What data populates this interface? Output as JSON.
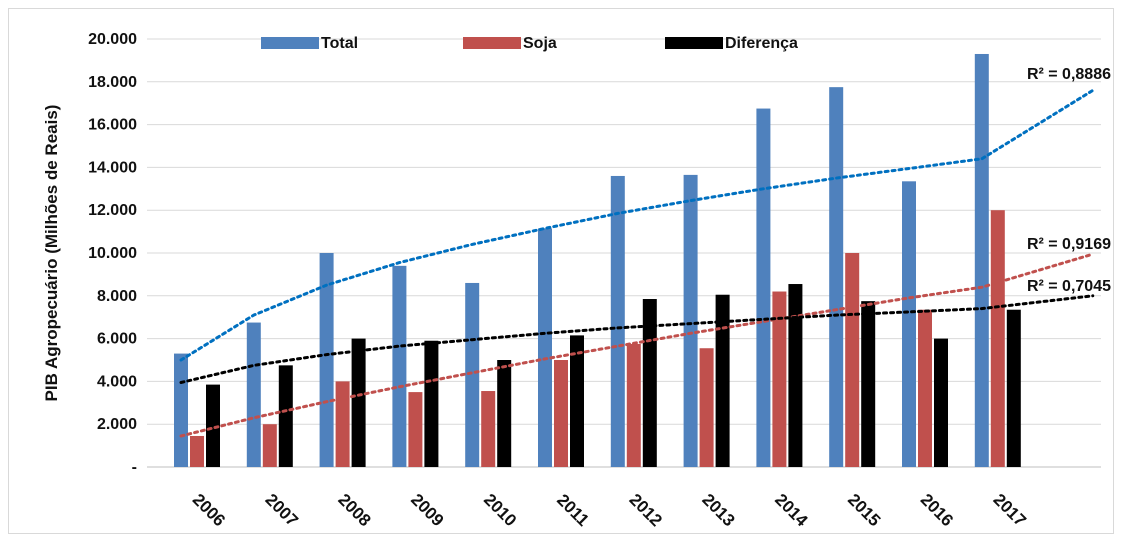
{
  "chart_data": {
    "type": "bar",
    "title": "",
    "xlabel": "",
    "ylabel": "PIB Agropecuário (Milhões de Reais)",
    "ylim": [
      0,
      20000
    ],
    "yticks": [
      0,
      2000,
      4000,
      6000,
      8000,
      10000,
      12000,
      14000,
      16000,
      18000,
      20000
    ],
    "ytick_labels": [
      "-",
      "2.000",
      "4.000",
      "6.000",
      "8.000",
      "10.000",
      "12.000",
      "14.000",
      "16.000",
      "18.000",
      "20.000"
    ],
    "grid": true,
    "legend_position": "top",
    "categories": [
      "2006",
      "2007",
      "2008",
      "2009",
      "2010",
      "2011",
      "2012",
      "2013",
      "2014",
      "2015",
      "2016",
      "2017"
    ],
    "series": [
      {
        "name": "Total",
        "color": "#4f81bd",
        "values": [
          5300,
          6750,
          10000,
          9400,
          8600,
          11150,
          13600,
          13650,
          16750,
          17750,
          13350,
          19300
        ]
      },
      {
        "name": "Soja",
        "color": "#c0504d",
        "values": [
          1450,
          2000,
          4000,
          3500,
          3550,
          5000,
          5750,
          5550,
          8200,
          10000,
          7350,
          12000
        ]
      },
      {
        "name": "Diferença",
        "color": "#000000",
        "values": [
          3850,
          4750,
          6000,
          5900,
          5000,
          6150,
          7850,
          8050,
          8550,
          7750,
          6000,
          7350
        ]
      }
    ],
    "trendlines": [
      {
        "series": "Total",
        "r2_label": "R² = 0,8886",
        "color": "#0070c0",
        "values": [
          5000,
          7100,
          8500,
          9550,
          10400,
          11150,
          11850,
          12450,
          13000,
          13500,
          13950,
          14400,
          17600
        ]
      },
      {
        "series": "Soja",
        "r2_label": "R² = 0,9169",
        "color": "#c0504d",
        "values": [
          1450,
          2300,
          3050,
          3750,
          4400,
          5050,
          5650,
          6250,
          6800,
          7350,
          7900,
          8400,
          9950
        ]
      },
      {
        "series": "Diferença",
        "r2_label": "R² = 0,7045",
        "color": "#000000",
        "values": [
          3950,
          4750,
          5250,
          5650,
          5950,
          6250,
          6500,
          6700,
          6900,
          7100,
          7250,
          7400,
          8000
        ]
      }
    ]
  }
}
